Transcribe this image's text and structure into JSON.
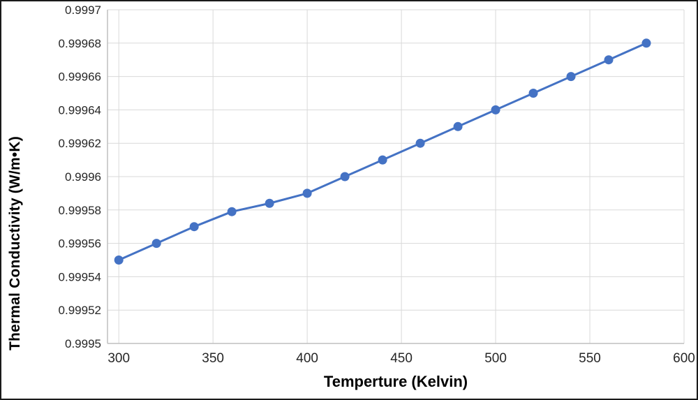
{
  "chart_data": {
    "type": "line",
    "title": "",
    "xlabel": "Temperture (Kelvin)",
    "ylabel": "Thermal Conductivity (W/m•K)",
    "x": [
      300,
      320,
      340,
      360,
      380,
      400,
      420,
      440,
      460,
      480,
      500,
      520,
      540,
      560,
      580
    ],
    "series": [
      {
        "name": "Thermal Conductivity",
        "values": [
          0.99955,
          0.99956,
          0.99957,
          0.999579,
          0.999584,
          0.99959,
          0.9996,
          0.99961,
          0.99962,
          0.99963,
          0.99964,
          0.99965,
          0.99966,
          0.99967,
          0.99968
        ]
      }
    ],
    "xlim": [
      294,
      600
    ],
    "ylim": [
      0.9995,
      0.9997
    ],
    "x_ticks": {
      "values": [
        300,
        350,
        400,
        450,
        500,
        550,
        600
      ],
      "labels": [
        "300",
        "350",
        "400",
        "450",
        "500",
        "550",
        "600"
      ]
    },
    "y_ticks": {
      "values": [
        0.9995,
        0.99952,
        0.99954,
        0.99956,
        0.99958,
        0.9996,
        0.99962,
        0.99964,
        0.99966,
        0.99968,
        0.9997
      ],
      "labels": [
        "0.9995",
        "0.99952",
        "0.99954",
        "0.99956",
        "0.99958",
        "0.9996",
        "0.99962",
        "0.99964",
        "0.99966",
        "0.99968",
        "0.9997"
      ]
    },
    "grid": {
      "horizontal": true,
      "vertical": true
    },
    "legend": "none",
    "marker": "circle",
    "colors": {
      "series": "#4472C4",
      "gridline": "#D9D9D9",
      "axis": "#BFBFBF",
      "tick_text": "#262626",
      "title_text": "#000000",
      "background": "#FFFFFF",
      "border": "#1A1A1A"
    }
  }
}
